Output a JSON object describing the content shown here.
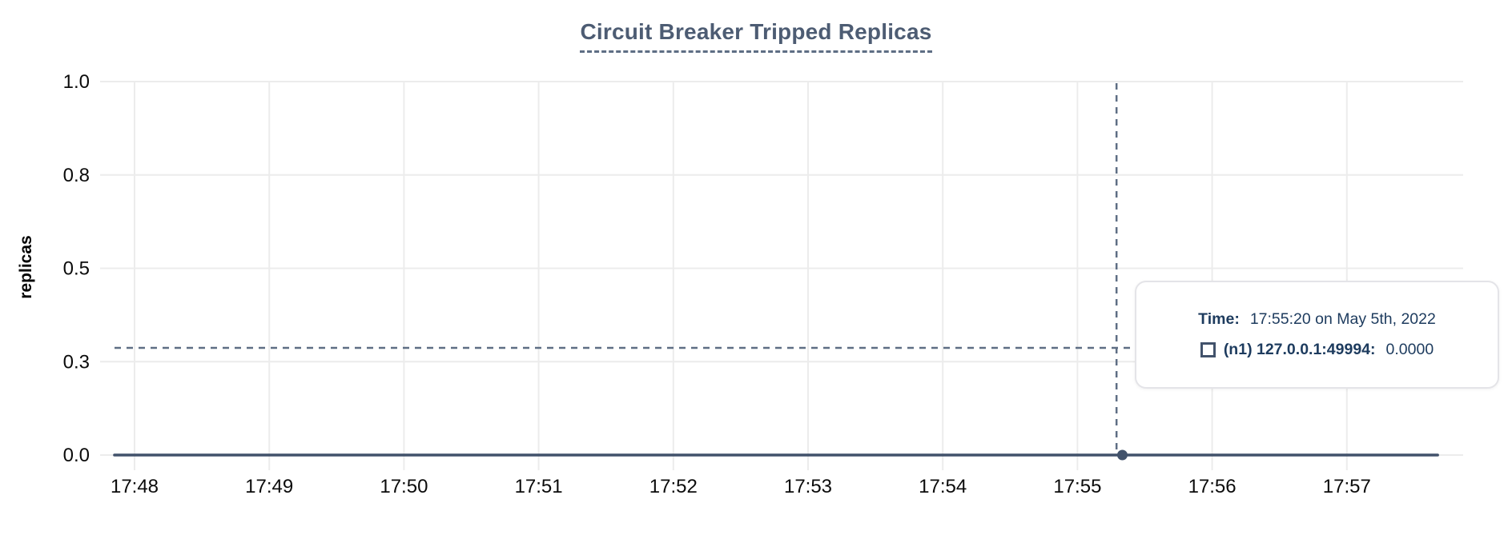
{
  "chart": {
    "title": "Circuit Breaker Tripped Replicas",
    "ylabel": "replicas"
  },
  "chart_data": {
    "type": "line",
    "title": "Circuit Breaker Tripped Replicas",
    "xlabel": "",
    "ylabel": "replicas",
    "ylim": [
      0,
      1.0
    ],
    "grid": true,
    "legend_position": "none",
    "x_domain_minutes_from_1748": [
      -0.256,
      9.863
    ],
    "x_ticks": [
      {
        "minute": 0,
        "label": "17:48"
      },
      {
        "minute": 1,
        "label": "17:49"
      },
      {
        "minute": 2,
        "label": "17:50"
      },
      {
        "minute": 3,
        "label": "17:51"
      },
      {
        "minute": 4,
        "label": "17:52"
      },
      {
        "minute": 5,
        "label": "17:53"
      },
      {
        "minute": 6,
        "label": "17:54"
      },
      {
        "minute": 7,
        "label": "17:55"
      },
      {
        "minute": 8,
        "label": "17:56"
      },
      {
        "minute": 9,
        "label": "17:57"
      }
    ],
    "y_ticks": [
      {
        "value": 1.0,
        "label": "1.0"
      },
      {
        "value": 0.75,
        "label": "0.8"
      },
      {
        "value": 0.5,
        "label": "0.5"
      },
      {
        "value": 0.25,
        "label": "0.3"
      },
      {
        "value": 0.0,
        "label": "0.0"
      }
    ],
    "series": [
      {
        "name": "(n1) 127.0.0.1:49994",
        "marker": "square-outline",
        "points": [
          {
            "minute": -0.149,
            "value": 0
          },
          {
            "minute": 9.674,
            "value": 0
          }
        ]
      }
    ],
    "highlight_point": {
      "minute": 7.3333,
      "value": 0,
      "time": "17:55:20"
    },
    "crosshair": {
      "minute": 7.29,
      "value": 0.287
    }
  },
  "tooltip": {
    "time_label": "Time:",
    "time_value": "17:55:20 on May 5th, 2022",
    "series_label": "(n1) 127.0.0.1:49994:",
    "series_value": "0.0000"
  },
  "colors": {
    "title": "#4d5c73",
    "title_underline": "#5e6e84",
    "series": "#42526b",
    "highlight_dot": "#42526b",
    "crosshair": "#5e6e84",
    "grid": "#ececec",
    "axis_text": "#0b0b0b",
    "tooltip_text": "#1d3b5e",
    "tooltip_border": "#e4e4e8",
    "legend_marker": "#42526b"
  }
}
